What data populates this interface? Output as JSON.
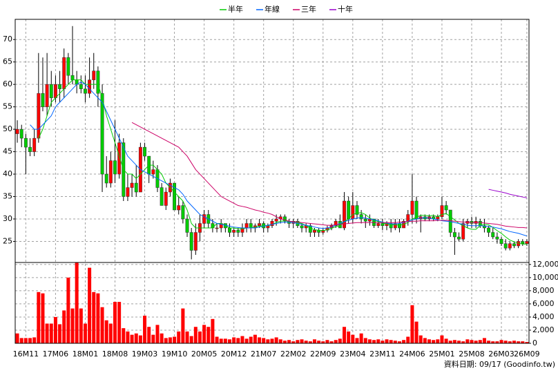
{
  "chart_data": [
    {
      "type": "candlestick",
      "open": [
        49,
        50,
        48,
        46,
        45,
        48,
        58,
        55,
        60,
        57,
        60,
        59,
        66,
        62,
        61,
        60,
        59,
        58,
        61,
        63,
        58,
        40,
        38,
        43,
        40,
        47,
        35,
        37,
        38,
        36,
        46,
        44,
        40,
        41,
        37,
        33,
        36,
        38,
        32,
        33,
        30,
        27,
        23,
        27,
        29,
        31,
        29,
        28,
        28,
        29,
        28,
        27,
        27.5,
        27,
        28,
        29,
        28,
        28.5,
        29,
        28,
        28.5,
        29.5,
        30,
        30.5,
        29.5,
        29,
        29.5,
        28.5,
        28,
        28.5,
        27,
        27.5,
        27,
        27.5,
        28,
        28.5,
        29.5,
        28,
        34,
        30,
        33,
        31,
        30,
        29.5,
        30,
        28.5,
        29,
        28.5,
        29,
        28,
        29,
        28,
        29.5,
        31,
        34,
        30,
        30.5,
        30,
        30.5,
        30,
        30.5,
        33,
        32,
        27,
        26,
        25.5,
        29,
        29.5,
        29,
        29.5,
        28.5,
        28,
        27,
        26,
        25.5,
        24.5,
        23.5,
        24.5,
        24,
        25,
        24.5
      ],
      "high": [
        52,
        51,
        49,
        48,
        50,
        67,
        66,
        67,
        63,
        62,
        63,
        68,
        67,
        73,
        63,
        62,
        62,
        66,
        67,
        64,
        60,
        44,
        45,
        52,
        49,
        48,
        40,
        40,
        42,
        47,
        47,
        44,
        43,
        42,
        38,
        37,
        39,
        38,
        35,
        34,
        31,
        28,
        29,
        31,
        32,
        32,
        30,
        29,
        30,
        29,
        29,
        28,
        28,
        29,
        30,
        30,
        29,
        30,
        29.5,
        29,
        30,
        31,
        31,
        31,
        30,
        30,
        30,
        29,
        29,
        29,
        28,
        28,
        28,
        28.5,
        29,
        30,
        31,
        36,
        35,
        36,
        34,
        32,
        31,
        31,
        30,
        30,
        30,
        29.5,
        30,
        30,
        30,
        30,
        32,
        40,
        35,
        31,
        31,
        31,
        31,
        31,
        35,
        34,
        32,
        28,
        27,
        30,
        30,
        30.5,
        30.5,
        30,
        30,
        28.5,
        28,
        27,
        26,
        25.5,
        25,
        25,
        25.5,
        25.5,
        25.5
      ],
      "low": [
        47,
        46,
        40,
        44,
        44,
        47,
        54,
        53,
        55,
        56,
        56,
        57,
        60,
        60,
        58,
        58,
        56,
        57,
        59,
        55,
        36,
        37,
        37,
        38,
        39,
        34,
        34,
        35,
        35,
        36,
        43,
        38,
        39,
        36,
        33,
        32,
        35,
        32,
        31,
        29,
        26,
        21,
        22,
        25,
        28,
        28,
        27,
        27,
        27,
        27,
        26,
        26,
        26,
        26,
        27,
        27,
        27,
        28,
        27,
        27,
        28,
        28.5,
        29,
        29,
        28,
        28,
        28,
        27,
        27,
        26,
        26,
        26,
        26.5,
        27,
        27.5,
        28,
        28,
        27.5,
        29,
        29,
        30,
        29,
        28,
        28.5,
        28,
        28,
        27.5,
        27.5,
        27,
        27.5,
        27,
        28,
        28.5,
        29,
        29,
        27,
        29.5,
        29.5,
        29.5,
        29.5,
        30,
        31,
        26,
        22,
        25,
        25,
        28,
        28,
        28,
        28,
        27,
        26,
        25.5,
        24.5,
        24,
        23,
        23,
        23.5,
        23.5,
        24,
        24
      ],
      "close": [
        50,
        48,
        46,
        45,
        48,
        58,
        55,
        60,
        57,
        60,
        59,
        66,
        62,
        61,
        60,
        59,
        58,
        61,
        63,
        58,
        40,
        38,
        43,
        40,
        47,
        35,
        37,
        38,
        36,
        46,
        44,
        40,
        41,
        37,
        33,
        36,
        38,
        32,
        33,
        30,
        27,
        23,
        27,
        29,
        31,
        29,
        28,
        28,
        29,
        28,
        27,
        27.5,
        27,
        28,
        29,
        28,
        28.5,
        29,
        28,
        28.5,
        29.5,
        30,
        30.5,
        29.5,
        29,
        29.5,
        28.5,
        28,
        28.5,
        27,
        27.5,
        27,
        27.5,
        28,
        28.5,
        29.5,
        28,
        34,
        30,
        33,
        31,
        30,
        29.5,
        30,
        28.5,
        29,
        28.5,
        29,
        28,
        29,
        28,
        29.5,
        31,
        34,
        30,
        30.5,
        30,
        30.5,
        30,
        30.5,
        33,
        32,
        27,
        26,
        25.5,
        29,
        29.5,
        29,
        29.5,
        28.5,
        28,
        27,
        26,
        25.5,
        24.5,
        23.5,
        24.5,
        24,
        25,
        24.5,
        25
      ],
      "up_color": "#ff0000",
      "down_color": "#00cc00",
      "series": [
        {
          "name": "半年",
          "color": "#00cc00",
          "values": [
            null,
            null,
            null,
            null,
            null,
            48,
            50,
            53,
            56,
            57,
            58,
            59,
            60,
            61,
            61,
            61,
            60,
            60,
            60,
            60,
            57,
            53,
            50,
            47,
            44,
            41,
            40,
            40,
            39,
            40,
            41,
            42,
            42,
            41,
            40,
            38,
            37,
            36,
            35,
            34,
            32,
            29,
            28,
            28,
            28,
            28,
            28,
            29,
            29,
            28.5,
            28,
            28,
            27.8,
            27.8,
            28,
            28,
            28.2,
            28.4,
            28.5,
            28.5,
            28.8,
            29.2,
            29.5,
            29.6,
            29.5,
            29.4,
            29.2,
            29,
            28.5,
            28,
            27.6,
            27.5,
            27.4,
            27.6,
            27.9,
            28.3,
            28.5,
            29.5,
            30,
            31,
            31.3,
            31.4,
            31,
            30.2,
            29.7,
            29.4,
            29.1,
            28.9,
            28.7,
            28.7,
            28.6,
            28.8,
            29.2,
            30,
            30.4,
            30.8,
            30.8,
            30.7,
            30.8,
            30.5,
            31,
            31.2,
            30.5,
            29.8,
            29,
            28.5,
            28,
            27.7,
            27.7,
            28.5,
            28.8,
            28.7,
            28.1,
            27.4,
            26.8,
            26,
            25.3,
            24.9,
            24.6,
            24.4,
            24.4
          ]
        },
        {
          "name": "年線",
          "color": "#0066ff",
          "values": [
            null,
            null,
            null,
            51,
            50,
            50,
            51,
            52,
            53,
            55,
            56,
            57,
            58,
            59,
            60,
            60.5,
            60,
            59,
            58,
            57,
            56,
            54,
            52,
            50,
            48,
            46,
            44,
            43,
            42,
            41,
            40.5,
            40,
            39.5,
            39,
            38.5,
            38,
            37.5,
            37,
            36.5,
            35.5,
            34,
            33,
            32,
            31,
            30.5,
            30,
            29.5,
            29,
            28.8,
            28.6,
            28.4,
            28.2,
            28.1,
            28,
            28,
            28,
            28,
            28.2,
            28.4,
            28.6,
            28.8,
            29,
            29.2,
            29.3,
            29.3,
            29.2,
            29,
            28.8,
            28.6,
            28.4,
            28.2,
            28,
            27.9,
            28,
            28.2,
            28.6,
            29,
            29.4,
            29.7,
            30,
            30.2,
            30.3,
            30.2,
            30,
            29.8,
            29.6,
            29.3,
            29.1,
            28.9,
            28.9,
            29,
            29.2,
            29.5,
            29.8,
            30,
            30.2,
            30.3,
            30.2,
            30,
            29.8,
            29.6,
            29.5,
            29.4,
            29.2,
            29,
            28.8,
            28.6,
            28.5,
            28.5,
            28.5,
            28.4,
            28.3,
            28.2,
            28,
            27.8,
            27.5,
            27.2,
            27,
            26.8,
            26.5,
            26.2
          ]
        },
        {
          "name": "三年",
          "color": "#cc0066",
          "values": [
            null,
            null,
            null,
            null,
            null,
            null,
            null,
            null,
            null,
            null,
            null,
            null,
            null,
            null,
            null,
            null,
            null,
            null,
            null,
            null,
            null,
            null,
            null,
            null,
            null,
            null,
            null,
            51.5,
            51,
            50.5,
            50,
            49.5,
            49,
            48.5,
            48,
            47.5,
            47,
            46.5,
            46,
            45,
            44,
            42.5,
            41,
            40,
            39,
            38,
            37,
            36,
            35,
            34.5,
            34,
            33.5,
            33,
            32.8,
            32.6,
            32.3,
            32,
            31.8,
            31.5,
            31.3,
            31,
            30.5,
            30,
            29.8,
            29.5,
            29.4,
            29.3,
            29.2,
            29.1,
            29,
            28.9,
            28.8,
            28.7,
            28.6,
            28.6,
            28.7,
            28.8,
            28.9,
            29,
            29.1,
            29.2,
            29.2,
            29.2,
            29.2,
            29.2,
            29.2,
            29.2,
            29.2,
            29.2,
            29.2,
            29.3,
            29.3,
            29.4,
            29.5,
            29.5,
            29.6,
            29.6,
            29.6,
            29.6,
            29.7,
            29.7,
            29.7,
            29.6,
            29.5,
            29.4,
            29.3,
            29.3,
            29.2,
            29.2,
            29.2,
            29.1,
            29,
            28.9,
            28.8,
            28.6,
            28.4,
            28.3,
            28.2,
            28.1,
            28.1,
            28
          ]
        },
        {
          "name": "十年",
          "color": "#9900cc",
          "values": [
            null,
            null,
            null,
            null,
            null,
            null,
            null,
            null,
            null,
            null,
            null,
            null,
            null,
            null,
            null,
            null,
            null,
            null,
            null,
            null,
            null,
            null,
            null,
            null,
            null,
            null,
            null,
            null,
            null,
            null,
            null,
            null,
            null,
            null,
            null,
            null,
            null,
            null,
            null,
            null,
            null,
            null,
            null,
            null,
            null,
            null,
            null,
            null,
            null,
            null,
            null,
            null,
            null,
            null,
            null,
            null,
            null,
            null,
            null,
            null,
            null,
            null,
            null,
            null,
            null,
            null,
            null,
            null,
            null,
            null,
            null,
            null,
            null,
            null,
            null,
            null,
            null,
            null,
            null,
            null,
            null,
            null,
            null,
            null,
            null,
            null,
            null,
            null,
            null,
            null,
            null,
            null,
            null,
            null,
            null,
            null,
            null,
            null,
            null,
            null,
            null,
            null,
            null,
            null,
            null,
            null,
            null,
            null,
            null,
            null,
            null,
            36.6,
            36.4,
            36.2,
            36,
            35.8,
            35.5,
            35.3,
            35.1,
            34.9,
            34.7
          ]
        }
      ],
      "ylim": [
        20.3,
        74.5
      ],
      "yticks": [
        25,
        30,
        35,
        40,
        45,
        50,
        55,
        60,
        65,
        70
      ],
      "grid": true,
      "legend": "top"
    },
    {
      "type": "bar",
      "categories": [
        null,
        null,
        "16M11",
        null,
        null,
        null,
        null,
        null,
        null,
        "17M06",
        null,
        null,
        null,
        null,
        null,
        null,
        "18M01",
        null,
        null,
        null,
        null,
        null,
        null,
        "18M08",
        null,
        null,
        null,
        null,
        null,
        null,
        "19M03",
        null,
        null,
        null,
        null,
        null,
        null,
        "19M10",
        null,
        null,
        null,
        null,
        null,
        null,
        "20M05",
        null,
        null,
        null,
        null,
        null,
        null,
        "20M12",
        null,
        null,
        null,
        null,
        null,
        null,
        "21M07",
        null,
        null,
        null,
        null,
        null,
        null,
        "22M02",
        null,
        null,
        null,
        null,
        null,
        null,
        "22M09",
        null,
        null,
        null,
        null,
        null,
        null,
        "23M04",
        null,
        null,
        null,
        null,
        null,
        null,
        "23M11",
        null,
        null,
        null,
        null,
        null,
        null,
        "24M06",
        null,
        null,
        null,
        null,
        null,
        null,
        "25M01",
        null,
        null,
        null,
        null,
        null,
        null,
        "25M08",
        null,
        null,
        null,
        null,
        null,
        null,
        "26M03",
        null,
        null,
        null,
        null,
        null,
        "26M09"
      ],
      "values": [
        1500,
        800,
        800,
        800,
        900,
        7800,
        7600,
        3000,
        3000,
        4000,
        2900,
        5000,
        10000,
        5300,
        12300,
        5300,
        3000,
        11500,
        7800,
        7600,
        5500,
        3500,
        3000,
        6300,
        6300,
        2300,
        1800,
        1300,
        1500,
        1200,
        4200,
        2500,
        1300,
        2800,
        1500,
        800,
        900,
        1000,
        1800,
        5300,
        1800,
        1100,
        2500,
        1800,
        2800,
        2500,
        3700,
        1000,
        700,
        700,
        600,
        900,
        800,
        1100,
        700,
        1000,
        1300,
        900,
        800,
        600,
        700,
        900,
        600,
        400,
        500,
        300,
        500,
        600,
        400,
        300,
        600,
        400,
        300,
        500,
        300,
        500,
        700,
        2500,
        1800,
        1300,
        800,
        1500,
        800,
        600,
        500,
        600,
        400,
        600,
        500,
        400,
        300,
        500,
        1000,
        5800,
        3300,
        1200,
        800,
        600,
        500,
        600,
        1200,
        700,
        400,
        500,
        400,
        300,
        600,
        500,
        400,
        500,
        800,
        400,
        300,
        300,
        500,
        400,
        300,
        400,
        300,
        300,
        200
      ],
      "color": "#ff0000",
      "ylim": [
        0,
        12300
      ],
      "yticks": [
        0,
        {
          "value": 2000,
          "label": "2,000"
        },
        {
          "value": 4000,
          "label": "4,000"
        },
        {
          "value": 6000,
          "label": "6,000"
        },
        {
          "value": 8000,
          "label": "8,000"
        },
        {
          "value": 10000,
          "label": "10,000"
        },
        {
          "value": 12000,
          "label": "12,000"
        }
      ],
      "grid": true
    }
  ],
  "footer": "資料日期: 09/17 (Goodinfo.tw)"
}
